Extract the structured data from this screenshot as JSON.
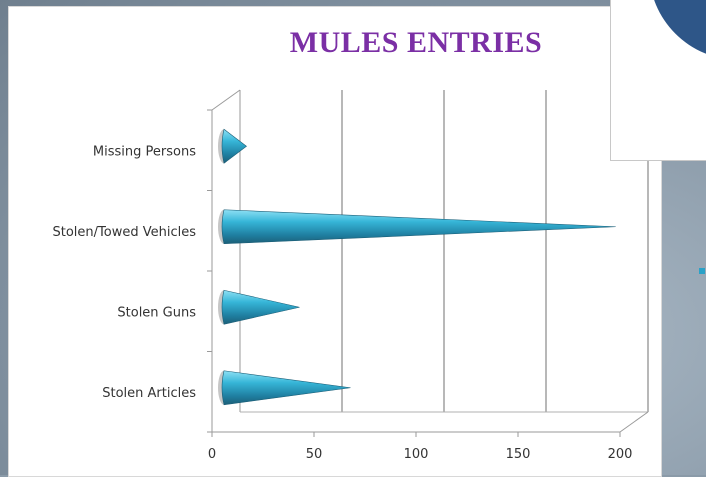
{
  "chart_data": {
    "type": "bar",
    "title": "MULES ENTRIES",
    "categories": [
      "Stolen Articles",
      "Stolen Guns",
      "Stolen/Towed Vehicles",
      "Missing Persons"
    ],
    "values": [
      63,
      38,
      193,
      12
    ],
    "xlim": [
      0,
      200
    ],
    "ticks": [
      0,
      50,
      100,
      150,
      200
    ],
    "tick_labels": [
      "0",
      "50",
      "100",
      "150",
      "200"
    ],
    "bar_style": "3d-cone",
    "grid": true,
    "colors": {
      "bar": "#2aa2c8",
      "bar_dark": "#1c5f78",
      "bar_light": "#8fe0f4",
      "title": "#7b2fa5",
      "grid": "#707070"
    }
  }
}
